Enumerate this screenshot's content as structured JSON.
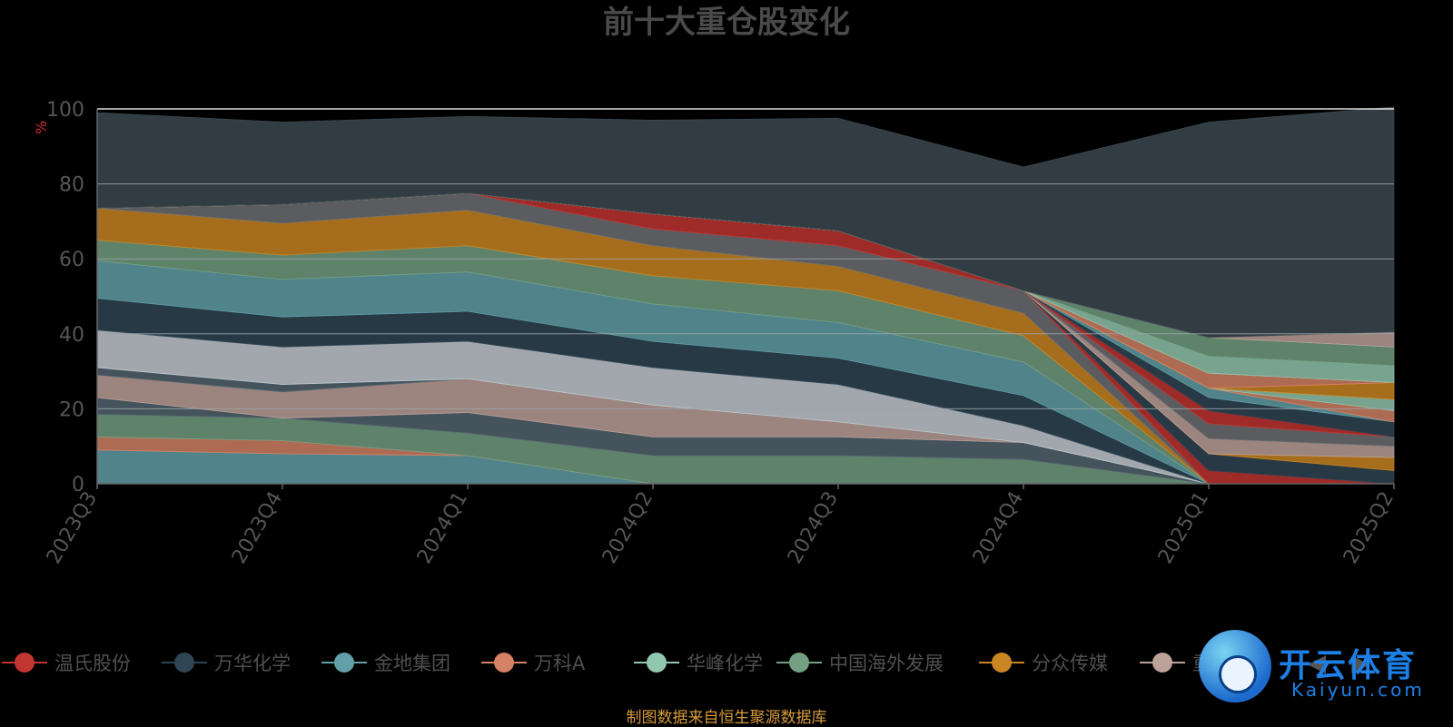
{
  "title": "前十大重仓股变化",
  "unit": "%",
  "source_note": "制图数据来自恒生聚源数据库",
  "watermark": {
    "text": "开云体育",
    "sub": "Kaiyun.com"
  },
  "pager": {
    "prev": "◀",
    "next": "▶"
  },
  "legend": [
    {
      "name": "温氏股份",
      "color": "#c23531"
    },
    {
      "name": "万华化学",
      "color": "#2f4554"
    },
    {
      "name": "金地集团",
      "color": "#61a0a8"
    },
    {
      "name": "万科A",
      "color": "#d48265"
    },
    {
      "name": "华峰化学",
      "color": "#91c7ae"
    },
    {
      "name": "中国海外发展",
      "color": "#749f83"
    },
    {
      "name": "分众传媒",
      "color": "#ca8622"
    },
    {
      "name": "重庆啤酒",
      "color": "#bda29a"
    }
  ],
  "chart_data": {
    "type": "area",
    "stacked": true,
    "categories": [
      "2023Q3",
      "2023Q4",
      "2024Q1",
      "2024Q2",
      "2024Q3",
      "2024Q4",
      "2025Q1",
      "2025Q2"
    ],
    "ylim": [
      0,
      100
    ],
    "yticks": [
      0,
      20,
      40,
      60,
      80,
      100
    ],
    "series": [
      {
        "color": "#61a0a8",
        "values": [
          9,
          8,
          7.5,
          0,
          0,
          0,
          0,
          0
        ]
      },
      {
        "color": "#d48265",
        "values": [
          3.5,
          3.5,
          0,
          0,
          0,
          0,
          0,
          0
        ]
      },
      {
        "color": "#749f83",
        "values": [
          6,
          6,
          6,
          7.5,
          7.5,
          6.5,
          0,
          0
        ]
      },
      {
        "color": "#546570",
        "values": [
          4.5,
          0,
          5.5,
          5,
          5,
          4.5,
          0,
          0
        ]
      },
      {
        "color": "#bda29a",
        "values": [
          6,
          7,
          9,
          8.5,
          4,
          0,
          0,
          0
        ]
      },
      {
        "color": "#546570",
        "values": [
          2,
          2,
          0,
          0,
          0,
          0,
          0,
          0
        ]
      },
      {
        "color": "#c4ccd3",
        "values": [
          10,
          10,
          10,
          10,
          10,
          4.5,
          0,
          0
        ]
      },
      {
        "color": "#2f4554",
        "values": [
          8.5,
          8,
          8,
          7,
          7,
          8,
          0,
          0
        ]
      },
      {
        "color": "#61a0a8",
        "values": [
          10,
          10,
          10.5,
          10,
          9.5,
          9,
          0,
          0
        ]
      },
      {
        "color": "#749f83",
        "values": [
          5.5,
          6.5,
          7,
          7.5,
          8.5,
          7,
          0,
          0
        ]
      },
      {
        "color": "#ca8622",
        "values": [
          8.5,
          8.5,
          9.5,
          8,
          6.5,
          6,
          0,
          0
        ]
      },
      {
        "color": "#6e7074",
        "values": [
          0,
          5,
          4.5,
          4.5,
          5.5,
          6,
          0,
          0
        ]
      },
      {
        "color": "#c23531",
        "values": [
          0,
          0,
          0,
          4,
          4,
          0,
          3.5,
          0
        ]
      },
      {
        "color": "#2f4554",
        "values": [
          0,
          0,
          0,
          0,
          0,
          0,
          4.5,
          3.5
        ]
      },
      {
        "color": "#ca8622",
        "values": [
          0,
          0,
          0,
          0,
          0,
          0,
          0,
          3.5
        ]
      },
      {
        "color": "#bda29a",
        "values": [
          0,
          0,
          0,
          0,
          0,
          0,
          4,
          3
        ]
      },
      {
        "color": "#6e7074",
        "values": [
          0,
          0,
          0,
          0,
          0,
          0,
          4,
          2.5
        ]
      },
      {
        "color": "#c23531",
        "values": [
          0,
          0,
          0,
          0,
          0,
          0,
          3.5,
          0
        ]
      },
      {
        "color": "#2f4554",
        "values": [
          0,
          0,
          0,
          0,
          0,
          0,
          3.5,
          4
        ]
      },
      {
        "color": "#61a0a8",
        "values": [
          0,
          0,
          0,
          0,
          0,
          0,
          2.5,
          0
        ]
      },
      {
        "color": "#d48265",
        "values": [
          0,
          0,
          0,
          0,
          0,
          0,
          0,
          3
        ]
      },
      {
        "color": "#91c7ae",
        "values": [
          0,
          0,
          0,
          0,
          0,
          0,
          0,
          3
        ]
      },
      {
        "color": "#ca8622",
        "values": [
          0,
          0,
          0,
          0,
          0,
          0,
          0,
          4.5
        ]
      },
      {
        "color": "#d48265",
        "values": [
          0,
          0,
          0,
          0,
          0,
          0,
          4,
          0
        ]
      },
      {
        "color": "#91c7ae",
        "values": [
          0,
          0,
          0,
          0,
          0,
          0,
          4.5,
          4.5
        ]
      },
      {
        "color": "#749f83",
        "values": [
          0,
          0,
          0,
          0,
          0,
          0,
          5,
          5
        ]
      },
      {
        "color": "#bda29a",
        "values": [
          0,
          0,
          0,
          0,
          0,
          0,
          0,
          4
        ]
      },
      {
        "color": "#3d4a52",
        "values": [
          25.5,
          22,
          20.5,
          25,
          30,
          33,
          57.5,
          60
        ]
      }
    ]
  }
}
